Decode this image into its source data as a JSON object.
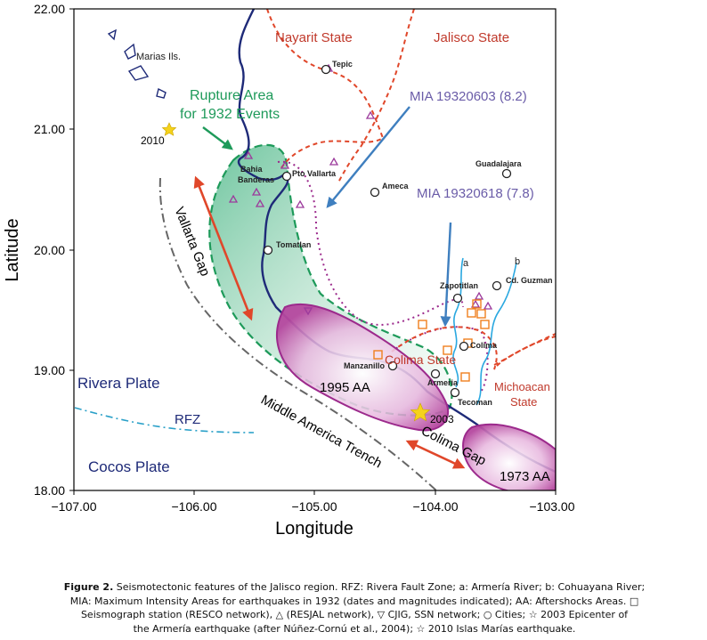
{
  "axes": {
    "xlabel": "Longitude",
    "ylabel": "Latitude",
    "xticks": [
      "−107.00",
      "−106.00",
      "−105.00",
      "−104.00",
      "−103.00"
    ],
    "yticks": [
      "18.00",
      "19.00",
      "20.00",
      "21.00",
      "22.00"
    ],
    "xlim": [
      -107.0,
      -103.0
    ],
    "ylim": [
      18.0,
      22.0
    ]
  },
  "labels": {
    "nayarit": "Nayarit State",
    "jalisco": "Jalisco State",
    "colima": "Colima State",
    "michoacan_1": "Michoacan",
    "michoacan_2": "State",
    "marias": "Marias Ils.",
    "rupture_1": "Rupture Area",
    "rupture_2": "for  1932 Events",
    "mia1": "MIA 19320603 (8.2)",
    "mia2": "MIA  19320618 (7.8)",
    "vallarta_gap": "Vallarta Gap",
    "colima_gap": "Colima Gap",
    "trench": "Middle America Trench",
    "rivera_plate": "Rivera Plate",
    "cocos_plate": "Cocos Plate",
    "rfz": "RFZ",
    "aa1995": "1995 AA",
    "aa1973": "1973 AA",
    "star2010": "2010",
    "star2003": "2003",
    "river_a": "a",
    "river_b": "b"
  },
  "cities": {
    "tepic": "Tepic",
    "bahia_1": "Bahia",
    "bahia_2": "Banderas",
    "pto_vallarta": "Pto Vallarta",
    "ameca": "Ameca",
    "guadalajara": "Guadalajara",
    "tomatlan": "Tomatlan",
    "zapotitlan": "Zapotitlan",
    "cd_guzman": "Cd. Guzman",
    "colima": "Colima",
    "manzanillo": "Manzanillo",
    "armeria": "Armeria",
    "tecoman": "Tecoman"
  },
  "caption": {
    "fig": "Figure 2.",
    "line1": " Seismotectonic features of the Jalisco region. RFZ: Rivera Fault Zone; a: Armería River; b: Cohuayana River;",
    "line2": "MIA: Maximum Intensity Areas for earthquakes in 1932 (dates and magnitudes indicated); AA: Aftershocks Areas. □",
    "line3": "Seismograph station (RESCO network), △ (RESJAL network), ▽ CJIG, SSN network; ○   Cities; ☆ 2003 Epicenter of",
    "line4": "the Armería earthquake (after Núñez-Cornú et al., 2004); ☆ 2010  Islas Marías earthquake."
  },
  "colors": {
    "coast": "#1e2a78",
    "state_border": "#e0472a",
    "nayarit_label": "#c0392b",
    "rupture_green": "#1e9a5a",
    "mia_blue": "#6a5ca8",
    "arrow_blue": "#3f7fbf",
    "aa_purple": "#9c2a8c",
    "gap_red": "#e0472a",
    "trench_gray": "#666666",
    "rfz_cyan": "#2aa0c8",
    "river_cyan": "#2aa8e0",
    "star_yellow": "#f5d21c",
    "triangle": "#9c3a9c",
    "square": "#f07f1e"
  }
}
